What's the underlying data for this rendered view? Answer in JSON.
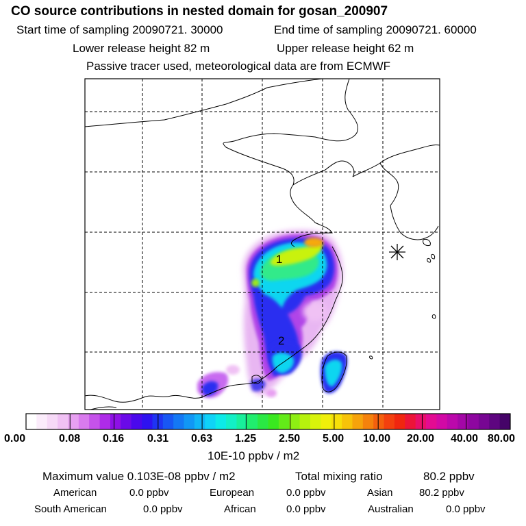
{
  "header": {
    "title": "CO  source contributions in nested domain for gosan_200907",
    "start_time": "Start time of sampling 20090721. 30000",
    "end_time": "End time of sampling 20090721. 60000",
    "lower_height": "Lower release height   82 m",
    "upper_height": "Upper release height   62 m",
    "tracer_note": "Passive tracer used, meteorological data are from ECMWF"
  },
  "map": {
    "labels": [
      "1",
      "2"
    ],
    "marker_icon": "asterisk-receptor-icon"
  },
  "colorbar": {
    "ticks": [
      "0.00",
      "0.08",
      "0.16",
      "0.31",
      "0.63",
      "1.25",
      "2.50",
      "5.00",
      "10.00",
      "20.00",
      "40.00",
      "80.00"
    ],
    "unit": "10E-10 ppbv / m2",
    "colors": [
      "#ffffff",
      "#fbecfb",
      "#f6d9f7",
      "#f0c1f4",
      "#e7a0f1",
      "#d97bee",
      "#c552ea",
      "#ae2be8",
      "#8e10e6",
      "#6a0ae8",
      "#4a08ec",
      "#2e12f0",
      "#1f34f2",
      "#1857f3",
      "#1478f4",
      "#1197f5",
      "#10b6f6",
      "#0fd3f7",
      "#0ceae8",
      "#12efc6",
      "#18ef9b",
      "#20ee6e",
      "#2ae944",
      "#39e81f",
      "#63eb18",
      "#8eef13",
      "#b6f20d",
      "#d8f30b",
      "#f0ef0a",
      "#f7df09",
      "#f7c309",
      "#f6a30b",
      "#f5820c",
      "#f4600d",
      "#f3400e",
      "#f0260f",
      "#ec1438",
      "#e80e6a",
      "#e30b92",
      "#d209a5",
      "#bb08ab",
      "#a407a7",
      "#8e06a0",
      "#770693",
      "#5e0580",
      "#450468"
    ]
  },
  "summary": {
    "max_label": "Maximum value  0.103E-08 ppbv / m2",
    "total_label": "Total mixing ratio",
    "total_value": "80.2 ppbv",
    "american_label": "American",
    "american_value": "0.0 ppbv",
    "european_label": "European",
    "european_value": "0.0 ppbv",
    "asian_label": "Asian",
    "asian_value": "80.2 ppbv",
    "south_american_label": "South American",
    "south_american_value": "0.0 ppbv",
    "african_label": "African",
    "african_value": "0.0 ppbv",
    "australian_label": "Australian",
    "australian_value": "0.0 ppbv"
  }
}
